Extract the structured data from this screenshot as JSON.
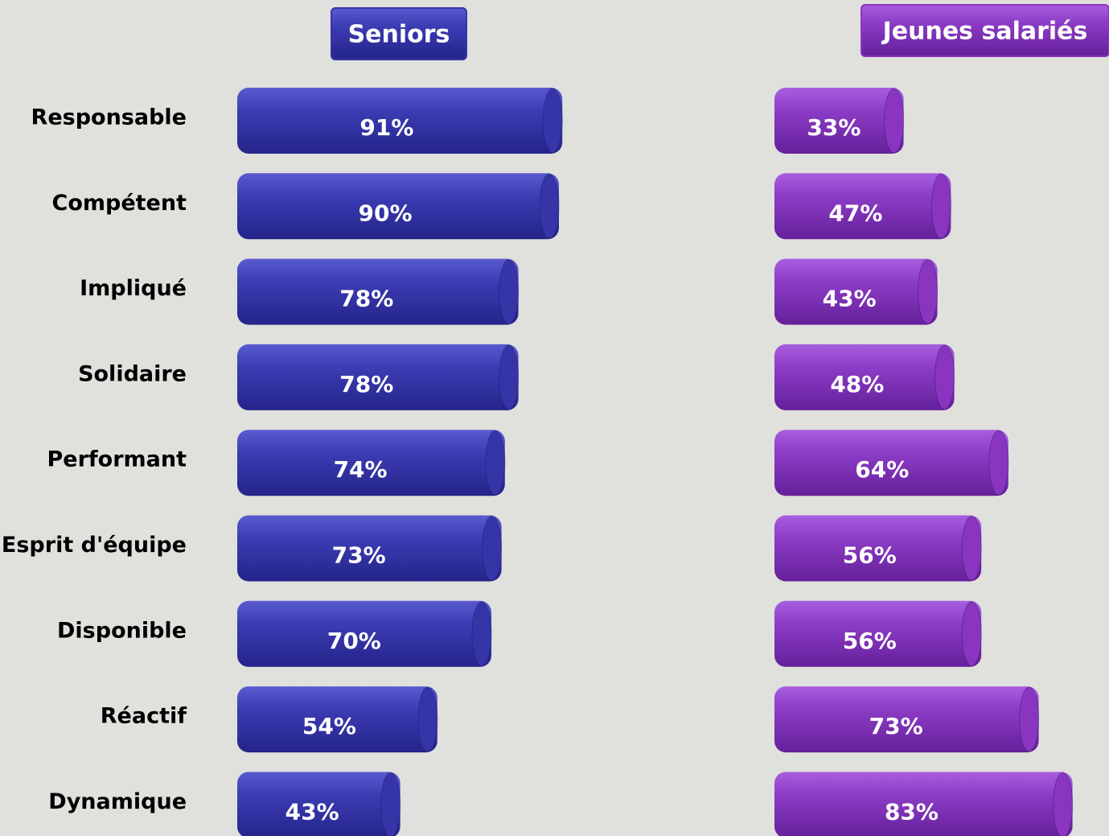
{
  "chart_data": {
    "type": "bar",
    "categories": [
      "Responsable",
      "Compétent",
      "Impliqué",
      "Solidaire",
      "Performant",
      "Esprit d'équipe",
      "Disponible",
      "Réactif",
      "Dynamique"
    ],
    "series": [
      {
        "name": "Seniors",
        "color": "#3535a8",
        "values": [
          91,
          90,
          78,
          78,
          74,
          73,
          70,
          54,
          43
        ],
        "value_labels": [
          "91%",
          "90%",
          "78%",
          "78%",
          "74%",
          "73%",
          "70%",
          "54%",
          "43%"
        ]
      },
      {
        "name": "Jeunes salariés",
        "color": "#8a35c0",
        "values": [
          33,
          47,
          43,
          48,
          64,
          56,
          56,
          73,
          83
        ],
        "value_labels": [
          "33%",
          "47%",
          "43%",
          "48%",
          "64%",
          "56%",
          "56%",
          "73%",
          "83%"
        ]
      }
    ]
  }
}
